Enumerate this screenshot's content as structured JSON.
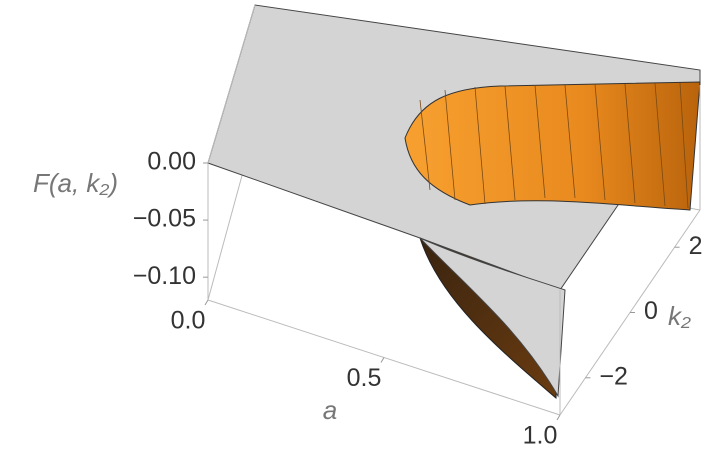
{
  "chart_data": {
    "type": "surface3d",
    "xlabel": "a",
    "ylabel": "k₂",
    "zlabel": "F(a, k₂)",
    "xlim": [
      0,
      1
    ],
    "xticks": [
      {
        "value": 0,
        "label": "0.0"
      },
      0.5,
      {
        "value": 1,
        "label": "1.0"
      }
    ],
    "ylim": [
      -3.14,
      3.14
    ],
    "yticks": [
      {
        "value": -2,
        "label": "−2"
      },
      0,
      2
    ],
    "zlim": [
      -0.12,
      0
    ],
    "zticks": [
      {
        "value": 0,
        "label": "0.00"
      },
      {
        "value": -0.05,
        "label": "−0.05"
      },
      {
        "value": -0.1,
        "label": "−0.10"
      }
    ],
    "color": "#f08a1c"
  }
}
